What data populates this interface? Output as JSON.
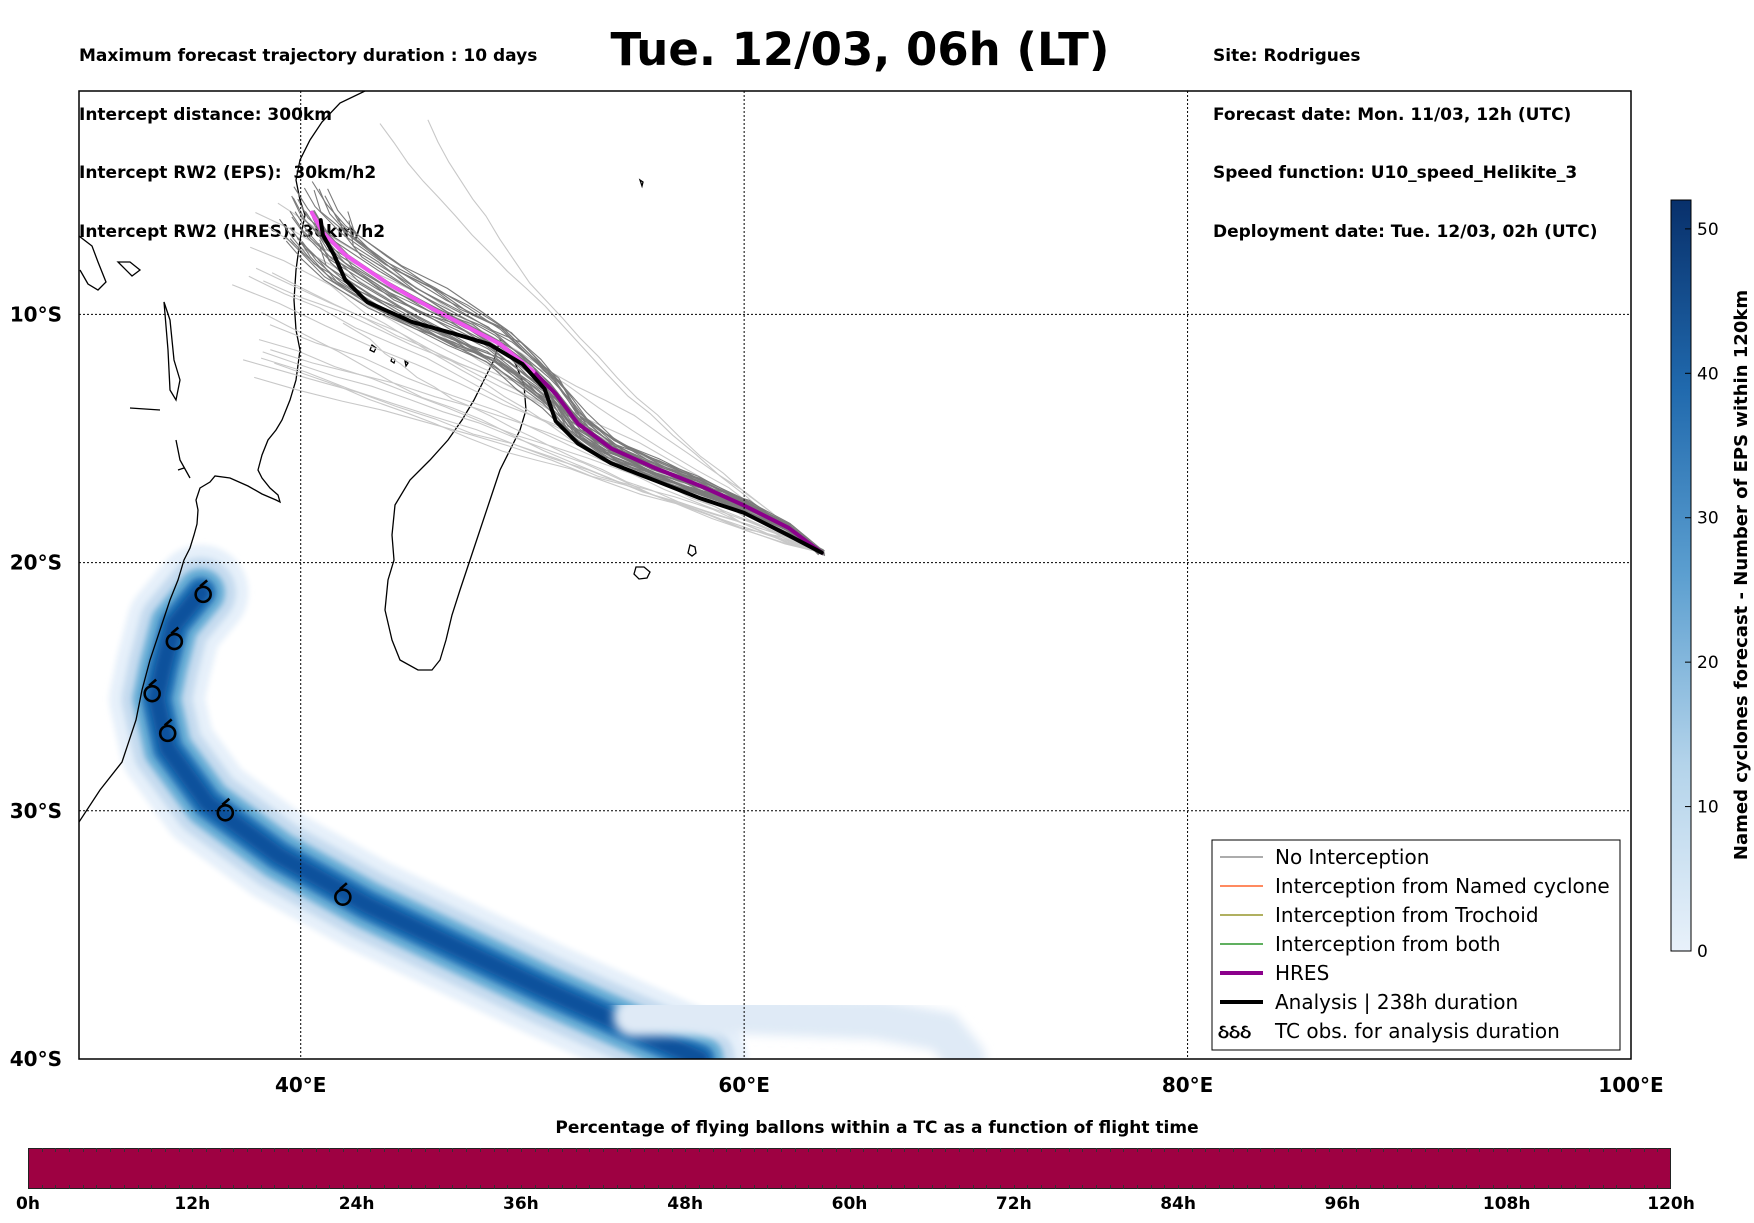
{
  "header": {
    "left_lines": [
      "Maximum forecast trajectory duration : 10 days",
      "Intercept distance: 300km",
      "Intercept RW2 (EPS):  30km/h2",
      "Intercept RW2 (HRES): 30km/h2"
    ],
    "title": "Tue. 12/03, 06h (LT)",
    "right_lines": [
      "Site: Rodrigues",
      "Forecast date: Mon. 11/03, 12h (UTC)",
      "Speed function: U10_speed_Helikite_3",
      "Deployment date: Tue. 12/03, 02h (UTC)"
    ]
  },
  "map": {
    "lon_range": [
      30,
      100
    ],
    "lat_range": [
      -40,
      -1
    ],
    "lon_ticks": [
      {
        "value": 40,
        "label": "40°E"
      },
      {
        "value": 60,
        "label": "60°E"
      },
      {
        "value": 80,
        "label": "80°E"
      },
      {
        "value": 100,
        "label": "100°E"
      }
    ],
    "lat_ticks": [
      {
        "value": -10,
        "label": "10°S"
      },
      {
        "value": -20,
        "label": "20°S"
      },
      {
        "value": -30,
        "label": "30°S"
      },
      {
        "value": -40,
        "label": "40°S"
      }
    ],
    "colors": {
      "no_interception": "#7a7a7a",
      "no_interception_light": "#c8c8c8",
      "named_cyclone": "#ff4500",
      "trochoid": "#808000",
      "both": "#008000",
      "hres": "#8b008b",
      "hres_early": "#ee55ee",
      "analysis": "#000000"
    }
  },
  "tracks": {
    "hres": [
      [
        63.5,
        -19.6
      ],
      [
        62,
        -18.6
      ],
      [
        60,
        -17.7
      ],
      [
        58,
        -16.9
      ],
      [
        56,
        -16.2
      ],
      [
        54,
        -15.4
      ],
      [
        52.5,
        -14.4
      ],
      [
        51.5,
        -13.2
      ],
      [
        50.5,
        -12.3
      ],
      [
        49,
        -11.2
      ],
      [
        47.5,
        -10.5
      ],
      [
        46,
        -9.8
      ],
      [
        44,
        -8.8
      ],
      [
        42,
        -7.6
      ],
      [
        41,
        -6.7
      ],
      [
        40.5,
        -5.9
      ]
    ],
    "analysis": [
      [
        63.5,
        -19.6
      ],
      [
        62,
        -18.9
      ],
      [
        60,
        -18.0
      ],
      [
        58,
        -17.4
      ],
      [
        56,
        -16.7
      ],
      [
        54,
        -16.0
      ],
      [
        52.5,
        -15.2
      ],
      [
        51.5,
        -14.3
      ],
      [
        51,
        -13.0
      ],
      [
        50,
        -12.0
      ],
      [
        48.5,
        -11.2
      ],
      [
        47,
        -10.8
      ],
      [
        45,
        -10.3
      ],
      [
        43,
        -9.5
      ],
      [
        42,
        -8.6
      ],
      [
        41.5,
        -7.6
      ],
      [
        41,
        -6.8
      ],
      [
        40.9,
        -6.2
      ]
    ]
  },
  "cyclone": {
    "track": [
      [
        35.5,
        -21.2
      ],
      [
        34.3,
        -22.5
      ],
      [
        33.8,
        -24.2
      ],
      [
        33.5,
        -25.5
      ],
      [
        34.0,
        -27.5
      ],
      [
        35.8,
        -29.7
      ],
      [
        39,
        -31.8
      ],
      [
        43,
        -33.8
      ],
      [
        47,
        -35.5
      ],
      [
        51,
        -37.2
      ],
      [
        55,
        -38.8
      ],
      [
        58,
        -40
      ]
    ],
    "tc_obs": [
      [
        35.6,
        -21.2
      ],
      [
        34.3,
        -23.1
      ],
      [
        33.3,
        -25.2
      ],
      [
        34.0,
        -26.8
      ],
      [
        36.6,
        -30.0
      ],
      [
        41.9,
        -33.4
      ]
    ]
  },
  "legend": {
    "items": [
      {
        "label": "No Interception",
        "color": "#7a7a7a",
        "width": 1.2
      },
      {
        "label": "Interception from Named cyclone",
        "color": "#ff4500",
        "width": 1.2
      },
      {
        "label": "Interception from Trochoid",
        "color": "#808000",
        "width": 1.2
      },
      {
        "label": "Interception from both",
        "color": "#008000",
        "width": 1.2
      },
      {
        "label": "HRES",
        "color": "#8b008b",
        "width": 4
      },
      {
        "label": "Analysis | 238h duration",
        "color": "#000000",
        "width": 4
      },
      {
        "label": "TC obs. for analysis duration",
        "color": "",
        "width": 0
      }
    ],
    "tc_symbol": "ઠઠઠ"
  },
  "colorbar": {
    "label": "Named cyclones forecast - Number of EPS within 120km",
    "range": [
      0,
      52
    ],
    "ticks": [
      0,
      10,
      20,
      30,
      40,
      50
    ]
  },
  "progress_bar": {
    "title": "Percentage of flying ballons within a TC as a function of flight time",
    "ticks": [
      "0h",
      "12h",
      "24h",
      "36h",
      "48h",
      "60h",
      "72h",
      "84h",
      "96h",
      "108h",
      "120h"
    ],
    "fill_color": "#9e0142"
  }
}
